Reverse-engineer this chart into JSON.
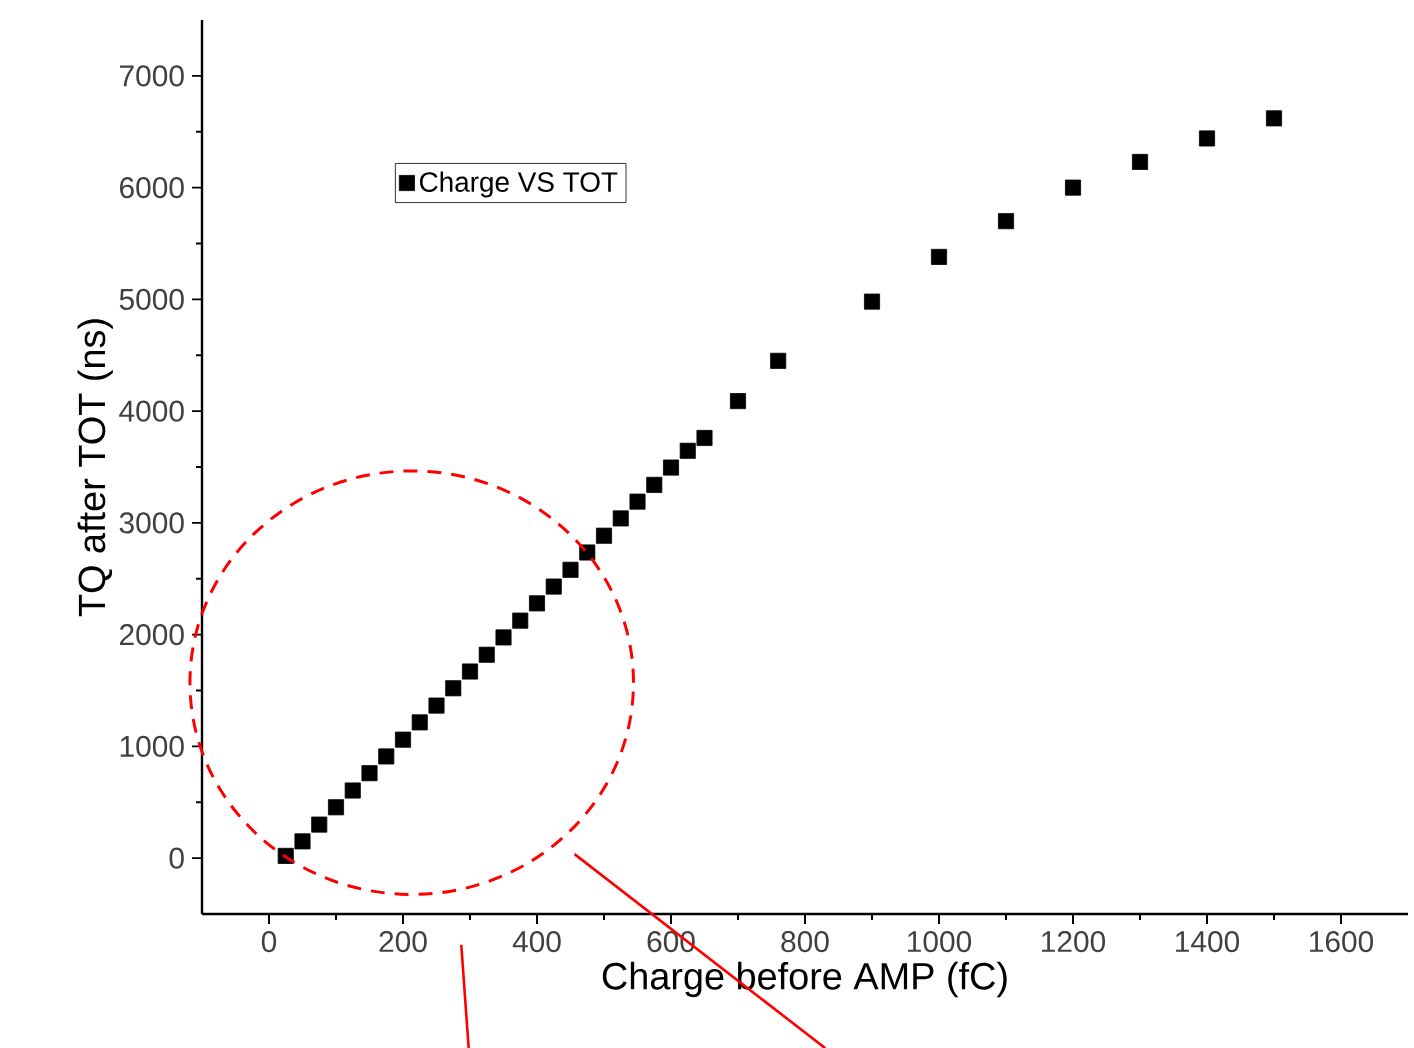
{
  "chart_data": {
    "type": "scatter",
    "xlabel": "Charge before AMP (fC)",
    "ylabel": "TQ after TOT (ns)",
    "xlim": [
      -100,
      1700
    ],
    "ylim": [
      -500,
      7500
    ],
    "xticks": [
      0,
      200,
      400,
      600,
      800,
      1000,
      1200,
      1400,
      1600
    ],
    "yticks": [
      0,
      1000,
      2000,
      3000,
      4000,
      5000,
      6000,
      7000
    ],
    "legend": "top left",
    "marker": "square",
    "grid": false,
    "series": [
      {
        "name": "Charge VS TOT",
        "color": "#000000",
        "x": [
          25,
          50,
          75,
          100,
          125,
          150,
          175,
          200,
          225,
          250,
          275,
          300,
          325,
          350,
          375,
          400,
          425,
          450,
          475,
          500,
          525,
          550,
          575,
          600,
          625,
          650,
          700,
          760,
          900,
          1000,
          1100,
          1200,
          1300,
          1400,
          1500
        ],
        "values": [
          20,
          150,
          300,
          455,
          605,
          760,
          910,
          1060,
          1215,
          1365,
          1520,
          1670,
          1820,
          1975,
          2125,
          2280,
          2430,
          2580,
          2735,
          2885,
          3040,
          3190,
          3340,
          3495,
          3645,
          3760,
          4090,
          4450,
          4980,
          5380,
          5700,
          6000,
          6230,
          6440,
          6620
        ]
      }
    ]
  }
}
